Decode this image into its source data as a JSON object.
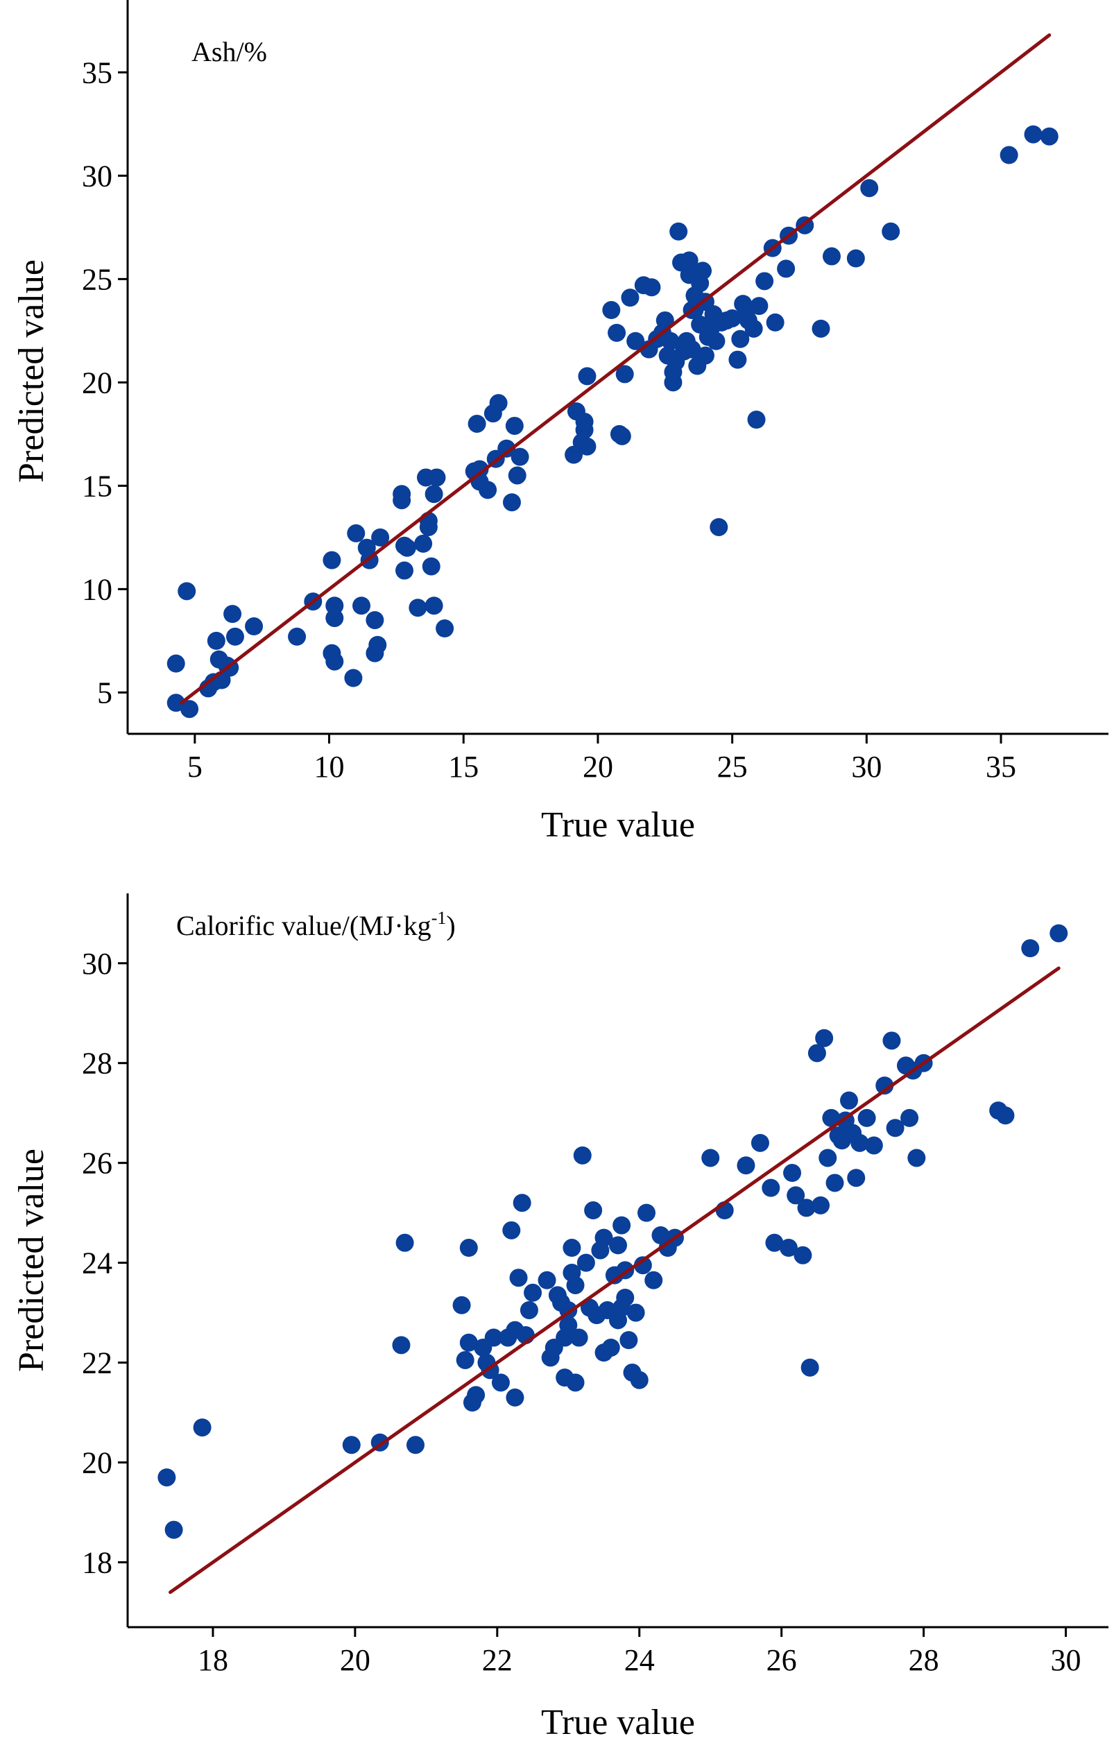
{
  "colors": {
    "point": "#0a3f9a",
    "fit_line": "#8b1014",
    "axis": "#000000"
  },
  "chart_data": [
    {
      "type": "scatter",
      "annotation": "Ash/%",
      "xlabel": "True value",
      "ylabel": "Predicted value",
      "xlim": [
        2.5,
        39.0
      ],
      "ylim": [
        3.0,
        38.5
      ],
      "xticks": [
        5,
        10,
        15,
        20,
        25,
        30,
        35
      ],
      "yticks": [
        5,
        10,
        15,
        20,
        25,
        30,
        35
      ],
      "grid": false,
      "fit_line": {
        "x": [
          4.5,
          36.8
        ],
        "y": [
          4.5,
          36.8
        ]
      },
      "x": [
        4.3,
        4.7,
        4.8,
        4.3,
        5.5,
        5.7,
        6.0,
        5.9,
        6.2,
        6.3,
        6.4,
        6.5,
        7.2,
        5.8,
        8.8,
        9.4,
        10.1,
        10.2,
        10.2,
        10.1,
        10.2,
        10.9,
        11.0,
        11.2,
        11.4,
        11.5,
        11.7,
        11.7,
        11.8,
        11.9,
        12.7,
        12.7,
        12.8,
        12.8,
        12.9,
        13.3,
        13.5,
        13.6,
        13.7,
        13.7,
        13.8,
        13.9,
        13.9,
        14.0,
        14.3,
        15.4,
        15.5,
        15.6,
        15.6,
        15.9,
        16.1,
        16.2,
        16.3,
        16.6,
        16.8,
        16.9,
        17.0,
        17.1,
        19.1,
        19.2,
        19.4,
        19.5,
        19.5,
        19.6,
        19.6,
        20.5,
        20.7,
        20.8,
        20.9,
        21.0,
        21.2,
        21.4,
        21.7,
        21.9,
        22.0,
        22.2,
        22.4,
        22.5,
        22.6,
        22.7,
        22.8,
        22.8,
        22.9,
        23.0,
        23.1,
        23.2,
        23.3,
        23.4,
        23.4,
        23.5,
        23.5,
        23.6,
        23.6,
        23.7,
        23.8,
        23.8,
        23.9,
        24.0,
        24.0,
        24.1,
        24.2,
        24.3,
        24.4,
        24.5,
        24.6,
        24.8,
        25.0,
        25.2,
        25.3,
        25.4,
        25.5,
        25.6,
        25.8,
        25.9,
        26.0,
        26.2,
        26.5,
        26.6,
        27.0,
        27.1,
        27.7,
        28.3,
        28.7,
        29.6,
        30.1,
        30.9,
        35.3,
        36.2,
        36.8
      ],
      "y": [
        6.4,
        9.9,
        4.2,
        4.5,
        5.2,
        5.5,
        5.6,
        6.6,
        6.3,
        6.2,
        8.8,
        7.7,
        8.2,
        7.5,
        7.7,
        9.4,
        11.4,
        9.2,
        8.6,
        6.9,
        6.5,
        5.7,
        12.7,
        9.2,
        12.0,
        11.4,
        8.5,
        6.9,
        7.3,
        12.5,
        14.3,
        14.6,
        10.9,
        12.1,
        12.0,
        9.1,
        12.2,
        15.4,
        13.3,
        13.0,
        11.1,
        9.2,
        14.6,
        15.4,
        8.1,
        15.7,
        18.0,
        15.2,
        15.8,
        14.8,
        18.5,
        16.3,
        19.0,
        16.8,
        14.2,
        17.9,
        15.5,
        16.4,
        16.5,
        18.6,
        17.1,
        17.7,
        18.1,
        20.3,
        16.9,
        23.5,
        22.4,
        17.5,
        17.4,
        20.4,
        24.1,
        22.0,
        24.7,
        21.6,
        24.6,
        22.1,
        22.4,
        23.0,
        21.3,
        22.0,
        20.0,
        20.5,
        21.0,
        27.3,
        25.8,
        21.5,
        22.0,
        25.2,
        25.9,
        23.5,
        21.6,
        24.2,
        23.5,
        20.8,
        22.8,
        24.8,
        25.4,
        21.3,
        23.9,
        22.2,
        22.6,
        23.3,
        22.0,
        13.0,
        22.9,
        23.0,
        23.1,
        21.1,
        22.1,
        23.8,
        23.3,
        23.0,
        22.6,
        18.2,
        23.7,
        24.9,
        26.5,
        22.9,
        25.5,
        27.1,
        27.6,
        22.6,
        26.1,
        26.0,
        29.4,
        27.3,
        31.0,
        32.0,
        31.9
      ]
    },
    {
      "type": "scatter",
      "annotation_main": "Calorific value/(MJ·kg",
      "annotation_sup": "-1",
      "annotation_end": ")",
      "xlabel": "True value",
      "ylabel": "Predicted value",
      "xlim": [
        16.8,
        30.6
      ],
      "ylim": [
        16.7,
        31.4
      ],
      "xticks": [
        18,
        20,
        22,
        24,
        26,
        28,
        30
      ],
      "yticks": [
        18,
        20,
        22,
        24,
        26,
        28,
        30
      ],
      "grid": false,
      "fit_line": {
        "x": [
          17.4,
          29.9
        ],
        "y": [
          17.4,
          29.9
        ]
      },
      "x": [
        17.35,
        17.45,
        17.85,
        19.95,
        20.35,
        20.85,
        20.65,
        20.7,
        21.5,
        21.55,
        21.6,
        21.6,
        21.65,
        21.7,
        21.8,
        21.85,
        21.9,
        21.95,
        22.05,
        22.15,
        22.2,
        22.25,
        22.25,
        22.3,
        22.35,
        22.4,
        22.45,
        22.5,
        22.7,
        22.75,
        22.8,
        22.85,
        22.9,
        22.95,
        22.95,
        23.0,
        23.0,
        23.05,
        23.05,
        23.1,
        23.1,
        23.15,
        23.2,
        23.25,
        23.3,
        23.35,
        23.4,
        23.45,
        23.5,
        23.5,
        23.55,
        23.6,
        23.65,
        23.7,
        23.7,
        23.75,
        23.75,
        23.8,
        23.8,
        23.85,
        23.9,
        23.95,
        24.0,
        24.05,
        24.1,
        24.2,
        24.3,
        24.4,
        24.5,
        25.0,
        25.2,
        25.5,
        25.7,
        25.85,
        25.9,
        26.1,
        26.15,
        26.2,
        26.3,
        26.35,
        26.4,
        26.5,
        26.55,
        26.6,
        26.65,
        26.7,
        26.75,
        26.8,
        26.85,
        26.9,
        26.95,
        27.0,
        27.05,
        27.1,
        27.2,
        27.3,
        27.45,
        27.55,
        27.6,
        27.75,
        27.8,
        27.85,
        27.9,
        28.0,
        29.05,
        29.15,
        29.5,
        29.9
      ],
      "y": [
        19.7,
        18.65,
        20.7,
        20.35,
        20.4,
        20.35,
        22.35,
        24.4,
        23.15,
        22.05,
        22.4,
        24.3,
        21.2,
        21.35,
        22.3,
        22.0,
        21.85,
        22.5,
        21.6,
        22.5,
        24.65,
        21.3,
        22.65,
        23.7,
        25.2,
        22.55,
        23.05,
        23.4,
        23.65,
        22.1,
        22.3,
        23.35,
        23.2,
        21.7,
        22.5,
        22.75,
        23.05,
        23.8,
        24.3,
        23.55,
        21.6,
        22.5,
        26.15,
        24.0,
        23.1,
        25.05,
        22.95,
        24.25,
        24.5,
        22.2,
        23.05,
        22.3,
        23.75,
        22.85,
        24.35,
        24.75,
        23.1,
        23.3,
        23.85,
        22.45,
        21.8,
        23.0,
        21.65,
        23.95,
        25.0,
        23.65,
        24.55,
        24.3,
        24.5,
        26.1,
        25.05,
        25.95,
        26.4,
        25.5,
        24.4,
        24.3,
        25.8,
        25.35,
        24.15,
        25.1,
        21.9,
        28.2,
        25.15,
        28.5,
        26.1,
        26.9,
        25.6,
        26.55,
        26.45,
        26.85,
        27.25,
        26.6,
        25.7,
        26.4,
        26.9,
        26.35,
        27.55,
        28.45,
        26.7,
        27.95,
        26.9,
        27.85,
        26.1,
        28.0,
        27.05,
        26.95,
        30.3,
        30.6
      ]
    }
  ]
}
